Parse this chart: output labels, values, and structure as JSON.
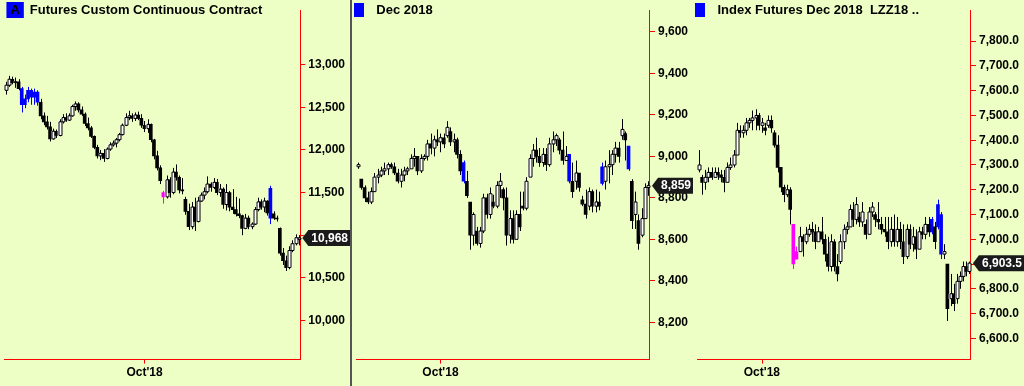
{
  "chart_data": [
    {
      "type": "candlestick",
      "title": "Futures Custom Continuous Contract",
      "annotations": [
        "A",
        "10,968"
      ],
      "categories": [
        null,
        null,
        null,
        null,
        null,
        null,
        null,
        null,
        null,
        null,
        null,
        null,
        null,
        null,
        null,
        null,
        null,
        null,
        null,
        null,
        null,
        null,
        null,
        null,
        null,
        null,
        null,
        null,
        null,
        null,
        null,
        null,
        null,
        null,
        null,
        null,
        null,
        null,
        null,
        null,
        null,
        null,
        null,
        null,
        "Oct'18",
        null,
        null,
        null,
        null,
        null,
        null,
        null,
        null,
        null,
        null,
        null,
        null,
        null,
        null,
        null,
        null,
        null,
        null,
        null,
        null,
        null,
        null,
        null,
        null,
        null,
        null,
        null,
        null,
        null,
        null,
        null,
        null,
        null,
        null,
        null,
        null,
        null,
        null,
        null,
        null,
        null,
        null,
        null,
        null,
        null,
        null,
        null,
        null,
        null
      ],
      "ohlc": [
        [
          12700,
          12800,
          12650,
          12760
        ],
        [
          12760,
          12870,
          12740,
          12830
        ],
        [
          12830,
          12860,
          12770,
          12790
        ],
        [
          12790,
          12850,
          12730,
          12800
        ],
        [
          12800,
          12830,
          12700,
          12720
        ],
        [
          12720,
          12740,
          12440,
          12530
        ],
        [
          12530,
          12650,
          12490,
          12600
        ],
        [
          12600,
          12740,
          12560,
          12700
        ],
        [
          12700,
          12720,
          12530,
          12620
        ],
        [
          12620,
          12720,
          12530,
          12680
        ],
        [
          12680,
          12700,
          12520,
          12560
        ],
        [
          12560,
          12600,
          12360,
          12400
        ],
        [
          12400,
          12440,
          12290,
          12330
        ],
        [
          12330,
          12400,
          12240,
          12270
        ],
        [
          12270,
          12330,
          12100,
          12130
        ],
        [
          12130,
          12250,
          12120,
          12220
        ],
        [
          12220,
          12240,
          12140,
          12170
        ],
        [
          12170,
          12360,
          12160,
          12330
        ],
        [
          12330,
          12420,
          12310,
          12380
        ],
        [
          12380,
          12430,
          12330,
          12350
        ],
        [
          12350,
          12430,
          12340,
          12400
        ],
        [
          12400,
          12530,
          12390,
          12510
        ],
        [
          12510,
          12570,
          12460,
          12540
        ],
        [
          12540,
          12560,
          12440,
          12470
        ],
        [
          12470,
          12510,
          12400,
          12420
        ],
        [
          12420,
          12440,
          12280,
          12310
        ],
        [
          12310,
          12380,
          12230,
          12260
        ],
        [
          12260,
          12280,
          12140,
          12160
        ],
        [
          12160,
          12170,
          12010,
          12030
        ],
        [
          12030,
          12060,
          11900,
          11930
        ],
        [
          11930,
          12000,
          11880,
          11960
        ],
        [
          11960,
          12010,
          11860,
          11900
        ],
        [
          11900,
          12030,
          11890,
          12010
        ],
        [
          12010,
          12090,
          11990,
          12060
        ],
        [
          12060,
          12110,
          12040,
          12080
        ],
        [
          12080,
          12140,
          12030,
          12120
        ],
        [
          12120,
          12200,
          12100,
          12180
        ],
        [
          12180,
          12310,
          12170,
          12290
        ],
        [
          12290,
          12430,
          12280,
          12380
        ],
        [
          12380,
          12460,
          12350,
          12400
        ],
        [
          12400,
          12430,
          12330,
          12370
        ],
        [
          12370,
          12440,
          12340,
          12410
        ],
        [
          12410,
          12450,
          12350,
          12370
        ],
        [
          12370,
          12420,
          12260,
          12290
        ],
        [
          12290,
          12340,
          12210,
          12250
        ],
        [
          12250,
          12360,
          12200,
          12300
        ],
        [
          12300,
          12310,
          12090,
          12120
        ],
        [
          12120,
          12130,
          11890,
          11930
        ],
        [
          11930,
          11990,
          11760,
          11790
        ],
        [
          11790,
          11820,
          11600,
          11640
        ],
        [
          11500,
          11520,
          11370,
          11450
        ],
        [
          11450,
          11700,
          11430,
          11650
        ],
        [
          11650,
          11680,
          11440,
          11500
        ],
        [
          11500,
          11790,
          11480,
          11740
        ],
        [
          11740,
          11830,
          11640,
          11680
        ],
        [
          11680,
          11700,
          11490,
          11530
        ],
        [
          11530,
          11670,
          11480,
          11520
        ],
        [
          11420,
          11450,
          11240,
          11280
        ],
        [
          11280,
          11370,
          11060,
          11100
        ],
        [
          11100,
          11390,
          11070,
          11330
        ],
        [
          11330,
          11440,
          11050,
          11160
        ],
        [
          11160,
          11450,
          11150,
          11400
        ],
        [
          11400,
          11500,
          11390,
          11470
        ],
        [
          11470,
          11560,
          11420,
          11510
        ],
        [
          11510,
          11690,
          11490,
          11600
        ],
        [
          11600,
          11620,
          11510,
          11560
        ],
        [
          11560,
          11670,
          11540,
          11620
        ],
        [
          11620,
          11660,
          11470,
          11500
        ],
        [
          11500,
          11600,
          11450,
          11540
        ],
        [
          11540,
          11560,
          11310,
          11360
        ],
        [
          11360,
          11600,
          11290,
          11500
        ],
        [
          11500,
          11520,
          11280,
          11330
        ],
        [
          11330,
          11540,
          11250,
          11300
        ],
        [
          11300,
          11450,
          11220,
          11250
        ],
        [
          11250,
          11430,
          11200,
          11230
        ],
        [
          11230,
          11240,
          11000,
          11080
        ],
        [
          11080,
          11250,
          11070,
          11200
        ],
        [
          11200,
          11230,
          11070,
          11100
        ],
        [
          11100,
          11150,
          11070,
          11130
        ],
        [
          11130,
          11330,
          11120,
          11300
        ],
        [
          11300,
          11440,
          11280,
          11390
        ],
        [
          11390,
          11420,
          11300,
          11330
        ],
        [
          11330,
          11440,
          11270,
          11400
        ],
        [
          11400,
          11410,
          11230,
          11260
        ],
        [
          11550,
          11580,
          11130,
          11200
        ],
        [
          11250,
          11280,
          11180,
          11200
        ],
        [
          11200,
          11230,
          11160,
          11190
        ],
        [
          11080,
          11090,
          10760,
          10790
        ],
        [
          10790,
          10850,
          10650,
          10700
        ],
        [
          10700,
          10760,
          10580,
          10620
        ],
        [
          10620,
          10870,
          10600,
          10820
        ],
        [
          10820,
          10940,
          10800,
          10900
        ],
        [
          10900,
          11010,
          10880,
          10970
        ],
        [
          10950,
          11000,
          10880,
          10968
        ]
      ],
      "colors": [
        null,
        null,
        null,
        null,
        null,
        "#0000ff",
        "#0000ff",
        "#0000ff",
        "#0000ff",
        "#0000ff",
        "#0000ff",
        null,
        null,
        null,
        null,
        null,
        null,
        null,
        null,
        null,
        null,
        null,
        null,
        null,
        null,
        null,
        null,
        null,
        null,
        null,
        null,
        null,
        null,
        null,
        null,
        null,
        null,
        null,
        null,
        null,
        null,
        null,
        null,
        null,
        null,
        null,
        null,
        null,
        null,
        null,
        "#ff00ff",
        null,
        null,
        null,
        null,
        null,
        null,
        null,
        null,
        null,
        null,
        null,
        null,
        null,
        null,
        null,
        null,
        null,
        null,
        null,
        null,
        null,
        null,
        null,
        null,
        null,
        null,
        null,
        null,
        null,
        null,
        null,
        null,
        null,
        "#0000ff",
        null,
        null,
        null,
        null,
        null,
        null,
        null,
        null,
        null
      ],
      "ylim": [
        9540,
        13640
      ],
      "yticks": [
        {
          "value": 10000,
          "label": "10,000"
        },
        {
          "value": 10500,
          "label": "10,500"
        },
        {
          "value": 11000,
          "label": null
        },
        {
          "value": 11500,
          "label": "11,500"
        },
        {
          "value": 12000,
          "label": "12,000"
        },
        {
          "value": 12500,
          "label": "12,500"
        },
        {
          "value": 13000,
          "label": "13,000"
        }
      ]
    },
    {
      "type": "candlestick",
      "title": "Dec 2018",
      "annotations": [
        "8,859"
      ],
      "categories": [
        null,
        null,
        null,
        null,
        null,
        null,
        null,
        null,
        null,
        null,
        null,
        null,
        null,
        null,
        null,
        null,
        null,
        null,
        null,
        null,
        null,
        null,
        null,
        null,
        null,
        "Oct'18",
        null,
        null,
        null,
        null,
        null,
        null,
        null,
        null,
        null,
        null,
        null,
        null,
        null,
        null,
        null,
        null,
        null,
        null,
        null,
        null,
        null,
        null,
        null,
        null,
        null,
        null,
        null,
        null,
        null,
        null,
        null,
        null,
        null,
        null,
        null,
        null,
        null,
        null,
        null,
        null,
        null,
        null,
        null,
        null,
        null,
        null,
        null,
        null,
        null,
        null,
        null,
        null,
        null,
        null,
        null,
        null,
        null,
        null,
        null,
        null,
        null,
        null,
        null
      ],
      "ohlc": [
        [
          8950,
          8970,
          8940,
          8960
        ],
        [
          8890,
          8890,
          8840,
          8850
        ],
        [
          8850,
          8860,
          8780,
          8800
        ],
        [
          8800,
          8830,
          8770,
          8780
        ],
        [
          8780,
          8850,
          8770,
          8830
        ],
        [
          8830,
          8920,
          8830,
          8900
        ],
        [
          8900,
          8940,
          8870,
          8910
        ],
        [
          8910,
          8950,
          8900,
          8930
        ],
        [
          8930,
          8970,
          8910,
          8940
        ],
        [
          8940,
          8970,
          8910,
          8960
        ],
        [
          8960,
          8970,
          8940,
          8950
        ],
        [
          8950,
          8970,
          8910,
          8920
        ],
        [
          8920,
          8940,
          8870,
          8880
        ],
        [
          8880,
          8940,
          8850,
          8910
        ],
        [
          8910,
          8950,
          8880,
          8930
        ],
        [
          8930,
          8950,
          8910,
          8940
        ],
        [
          8940,
          9010,
          8940,
          8990
        ],
        [
          8990,
          9040,
          8950,
          9000
        ],
        [
          9000,
          9000,
          8910,
          8930
        ],
        [
          8930,
          9010,
          8920,
          8990
        ],
        [
          8990,
          9010,
          8980,
          9000
        ],
        [
          9000,
          9080,
          8980,
          9060
        ],
        [
          9060,
          9110,
          9010,
          9040
        ],
        [
          9040,
          9100,
          9000,
          9080
        ],
        [
          9080,
          9130,
          9050,
          9070
        ],
        [
          9070,
          9110,
          9020,
          9090
        ],
        [
          9090,
          9110,
          9040,
          9060
        ],
        [
          9100,
          9170,
          9090,
          9140
        ],
        [
          9120,
          9140,
          9050,
          9070
        ],
        [
          9070,
          9110,
          9020,
          9080
        ],
        [
          9080,
          9090,
          8990,
          9010
        ],
        [
          9010,
          9030,
          8910,
          8930
        ],
        [
          8970,
          8980,
          8870,
          8880
        ],
        [
          8880,
          8930,
          8800,
          8810
        ],
        [
          8780,
          8780,
          8550,
          8620
        ],
        [
          8620,
          8730,
          8570,
          8720
        ],
        [
          8640,
          8660,
          8570,
          8580
        ],
        [
          8580,
          8660,
          8560,
          8640
        ],
        [
          8640,
          8820,
          8630,
          8800
        ],
        [
          8800,
          8820,
          8700,
          8720
        ],
        [
          8720,
          8850,
          8700,
          8820
        ],
        [
          8780,
          8815,
          8750,
          8760
        ],
        [
          8760,
          8880,
          8750,
          8860
        ],
        [
          8860,
          8920,
          8800,
          8880
        ],
        [
          8840,
          8850,
          8740,
          8800
        ],
        [
          8800,
          8850,
          8570,
          8620
        ],
        [
          8620,
          8740,
          8580,
          8700
        ],
        [
          8700,
          8740,
          8580,
          8600
        ],
        [
          8600,
          8740,
          8600,
          8720
        ],
        [
          8720,
          8830,
          8640,
          8660
        ],
        [
          8760,
          8830,
          8740,
          8750
        ],
        [
          8750,
          8900,
          8740,
          8880
        ],
        [
          8900,
          9010,
          8900,
          8990
        ],
        [
          8990,
          9060,
          8950,
          9030
        ],
        [
          9030,
          9090,
          8970,
          9000
        ],
        [
          9000,
          9040,
          8950,
          8970
        ],
        [
          8970,
          9040,
          8950,
          9010
        ],
        [
          9010,
          9040,
          8930,
          8960
        ],
        [
          8960,
          9090,
          8950,
          9060
        ],
        [
          9060,
          9120,
          9020,
          9080
        ],
        [
          9080,
          9110,
          9050,
          9100
        ],
        [
          9080,
          9090,
          9010,
          9030
        ],
        [
          9030,
          9120,
          8960,
          8980
        ],
        [
          8980,
          9050,
          8980,
          9000
        ],
        [
          9010,
          9010,
          8870,
          8880
        ],
        [
          8880,
          8970,
          8800,
          8830
        ],
        [
          8880,
          8980,
          8840,
          8920
        ],
        [
          8920,
          8920,
          8830,
          8850
        ],
        [
          8790,
          8810,
          8760,
          8770
        ],
        [
          8770,
          8840,
          8700,
          8720
        ],
        [
          8760,
          8850,
          8740,
          8830
        ],
        [
          8830,
          8840,
          8730,
          8760
        ],
        [
          8760,
          8840,
          8730,
          8780
        ],
        [
          8780,
          8830,
          8740,
          8760
        ],
        [
          8870,
          8970,
          8860,
          8950
        ],
        [
          8880,
          8980,
          8840,
          8950
        ],
        [
          8950,
          9030,
          8870,
          8960
        ],
        [
          8960,
          9030,
          8910,
          9010
        ],
        [
          9010,
          9070,
          8970,
          9040
        ],
        [
          9040,
          9070,
          8970,
          9000
        ],
        [
          9100,
          9180,
          9080,
          9130
        ],
        [
          9110,
          9120,
          8980,
          9080
        ],
        [
          9050,
          9050,
          8930,
          8940
        ],
        [
          8880,
          8890,
          8650,
          8690
        ],
        [
          8720,
          8830,
          8650,
          8780
        ],
        [
          8690,
          8720,
          8550,
          8580
        ],
        [
          8620,
          8750,
          8610,
          8700
        ],
        [
          8700,
          8870,
          8700,
          8850
        ],
        [
          8850,
          8880,
          8810,
          8859
        ]
      ],
      "colors": [
        null,
        null,
        null,
        null,
        null,
        null,
        null,
        null,
        null,
        null,
        null,
        null,
        null,
        null,
        null,
        null,
        null,
        null,
        null,
        null,
        null,
        null,
        null,
        null,
        null,
        null,
        null,
        null,
        null,
        null,
        null,
        null,
        "#0000ff",
        null,
        null,
        null,
        null,
        null,
        null,
        null,
        null,
        null,
        null,
        null,
        null,
        null,
        null,
        null,
        null,
        null,
        null,
        null,
        null,
        null,
        null,
        null,
        null,
        null,
        null,
        null,
        null,
        null,
        null,
        null,
        "#0000ff",
        null,
        null,
        null,
        null,
        null,
        null,
        null,
        null,
        null,
        "#0000ff",
        null,
        null,
        null,
        null,
        null,
        null,
        null,
        "#0000ff",
        null,
        null,
        null,
        null,
        null,
        null
      ],
      "ylim": [
        8020,
        9705
      ],
      "yticks": [
        {
          "value": 8200,
          "label": "8,200"
        },
        {
          "value": 8400,
          "label": "8,400"
        },
        {
          "value": 8600,
          "label": "8,600"
        },
        {
          "value": 8800,
          "label": "8,800"
        },
        {
          "value": 9000,
          "label": "9,000"
        },
        {
          "value": 9200,
          "label": "9,200"
        },
        {
          "value": 9400,
          "label": "9,400"
        },
        {
          "value": 9600,
          "label": "9,600"
        }
      ]
    },
    {
      "type": "candlestick",
      "title": "Index Futures Dec 2018  LZZ18 ..",
      "annotations": [
        "6,903.5"
      ],
      "categories": [
        null,
        null,
        null,
        null,
        null,
        null,
        null,
        null,
        null,
        null,
        null,
        null,
        null,
        null,
        null,
        null,
        null,
        null,
        null,
        null,
        "Oct'18",
        null,
        null,
        null,
        null,
        null,
        null,
        null,
        null,
        null,
        null,
        null,
        null,
        null,
        null,
        null,
        null,
        null,
        null,
        null,
        null,
        null,
        null,
        null,
        null,
        null,
        null,
        null,
        null,
        null,
        null,
        null,
        null,
        null,
        null,
        null,
        null,
        null,
        null,
        null,
        null,
        null,
        null,
        null,
        null,
        null,
        null,
        null,
        null,
        null,
        null,
        null,
        null,
        null,
        null,
        null,
        null,
        null,
        null,
        null,
        null,
        null,
        null,
        null,
        null,
        null,
        null
      ],
      "ohlc": [
        [
          7280,
          7360,
          7270,
          7300
        ],
        [
          7250,
          7260,
          7180,
          7230
        ],
        [
          7230,
          7280,
          7200,
          7250
        ],
        [
          7250,
          7290,
          7230,
          7270
        ],
        [
          7270,
          7290,
          7240,
          7250
        ],
        [
          7250,
          7290,
          7250,
          7270
        ],
        [
          7270,
          7290,
          7240,
          7260
        ],
        [
          7260,
          7280,
          7230,
          7250
        ],
        [
          7250,
          7280,
          7190,
          7230
        ],
        [
          7230,
          7310,
          7230,
          7290
        ],
        [
          7290,
          7330,
          7280,
          7300
        ],
        [
          7300,
          7360,
          7290,
          7340
        ],
        [
          7340,
          7470,
          7340,
          7440
        ],
        [
          7440,
          7460,
          7410,
          7430
        ],
        [
          7430,
          7460,
          7410,
          7440
        ],
        [
          7440,
          7490,
          7420,
          7470
        ],
        [
          7470,
          7490,
          7450,
          7480
        ],
        [
          7480,
          7520,
          7440,
          7490
        ],
        [
          7490,
          7525,
          7440,
          7500
        ],
        [
          7500,
          7510,
          7440,
          7460
        ],
        [
          7460,
          7490,
          7430,
          7470
        ],
        [
          7450,
          7470,
          7420,
          7440
        ],
        [
          7460,
          7500,
          7450,
          7480
        ],
        [
          7480,
          7500,
          7430,
          7450
        ],
        [
          7430,
          7440,
          7370,
          7380
        ],
        [
          7380,
          7420,
          7270,
          7290
        ],
        [
          7290,
          7290,
          7190,
          7210
        ],
        [
          7210,
          7220,
          7150,
          7180
        ],
        [
          7180,
          7220,
          7170,
          7200
        ],
        [
          7200,
          7210,
          7060,
          7120
        ],
        [
          7060,
          7060,
          6880,
          6900
        ],
        [
          6920,
          6970,
          6920,
          6950
        ],
        [
          6950,
          7050,
          6950,
          7010
        ],
        [
          7010,
          7020,
          6930,
          6990
        ],
        [
          6990,
          7050,
          6980,
          7020
        ],
        [
          7020,
          7060,
          7010,
          7040
        ],
        [
          7040,
          7070,
          6990,
          7030
        ],
        [
          7030,
          7060,
          6960,
          6990
        ],
        [
          6990,
          7050,
          6990,
          7030
        ],
        [
          7030,
          7090,
          6980,
          7000
        ],
        [
          7000,
          7020,
          6910,
          6940
        ],
        [
          6940,
          7010,
          6870,
          6890
        ],
        [
          6890,
          7020,
          6870,
          6990
        ],
        [
          6990,
          7000,
          6870,
          6890
        ],
        [
          6890,
          6940,
          6830,
          6860
        ],
        [
          6910,
          7020,
          6900,
          6990
        ],
        [
          6990,
          7060,
          6960,
          7040
        ],
        [
          7040,
          7070,
          7020,
          7050
        ],
        [
          7050,
          7140,
          7050,
          7120
        ],
        [
          7120,
          7150,
          7050,
          7080
        ],
        [
          7080,
          7170,
          7060,
          7140
        ],
        [
          7090,
          7110,
          7050,
          7070
        ],
        [
          7070,
          7150,
          7050,
          7110
        ],
        [
          7060,
          7080,
          7000,
          7020
        ],
        [
          7020,
          7130,
          7020,
          7110
        ],
        [
          7110,
          7150,
          7090,
          7130
        ],
        [
          7100,
          7110,
          7050,
          7080
        ],
        [
          7080,
          7150,
          7040,
          7070
        ],
        [
          7060,
          7090,
          7020,
          7040
        ],
        [
          7040,
          7090,
          7010,
          7030
        ],
        [
          7030,
          7090,
          6960,
          6990
        ],
        [
          6990,
          7090,
          6970,
          7040
        ],
        [
          7040,
          7100,
          6970,
          6990
        ],
        [
          6990,
          7090,
          6970,
          7040
        ],
        [
          7040,
          7070,
          6960,
          6990
        ],
        [
          6990,
          7060,
          6900,
          6930
        ],
        [
          6930,
          7060,
          6920,
          7040
        ],
        [
          7040,
          7060,
          6960,
          6980
        ],
        [
          6980,
          7050,
          6950,
          7010
        ],
        [
          7010,
          7040,
          6920,
          6960
        ],
        [
          6960,
          7050,
          6960,
          7030
        ],
        [
          7030,
          7050,
          7000,
          7020
        ],
        [
          7020,
          7090,
          7000,
          7060
        ],
        [
          7060,
          7090,
          7010,
          7030
        ],
        [
          7030,
          7090,
          7020,
          7080
        ],
        [
          7050,
          7070,
          6960,
          6990
        ],
        [
          7050,
          7160,
          7040,
          7140
        ],
        [
          7100,
          7110,
          6920,
          6940
        ],
        [
          6940,
          6980,
          6920,
          6950
        ],
        [
          6900,
          6900,
          6670,
          6720
        ],
        [
          6760,
          6860,
          6730,
          6780
        ],
        [
          6780,
          6820,
          6710,
          6740
        ],
        [
          6760,
          6860,
          6740,
          6830
        ],
        [
          6830,
          6870,
          6800,
          6850
        ],
        [
          6850,
          6910,
          6830,
          6890
        ],
        [
          6890,
          6910,
          6850,
          6870
        ],
        [
          6870,
          6910,
          6860,
          6903.5
        ]
      ],
      "colors": [
        null,
        null,
        null,
        null,
        null,
        null,
        null,
        null,
        null,
        null,
        null,
        null,
        null,
        null,
        null,
        null,
        null,
        null,
        null,
        null,
        null,
        null,
        null,
        null,
        null,
        null,
        null,
        null,
        null,
        null,
        "#ff00ff",
        "#ff00ff",
        null,
        null,
        null,
        null,
        null,
        null,
        null,
        null,
        null,
        null,
        null,
        null,
        null,
        null,
        null,
        null,
        null,
        null,
        null,
        null,
        null,
        null,
        null,
        null,
        null,
        null,
        null,
        null,
        null,
        null,
        null,
        null,
        null,
        null,
        null,
        null,
        null,
        null,
        null,
        null,
        null,
        null,
        "#0000ff",
        null,
        "#0000ff",
        "#0000ff",
        null,
        null,
        null,
        null,
        null,
        null,
        null,
        null,
        null
      ],
      "ylim": [
        6514,
        7925
      ],
      "yticks": [
        {
          "value": 6600,
          "label": "6,600.0"
        },
        {
          "value": 6700,
          "label": "6,700.0"
        },
        {
          "value": 6800,
          "label": "6,800.0"
        },
        {
          "value": 6900,
          "label": null
        },
        {
          "value": 7000,
          "label": "7,000.0"
        },
        {
          "value": 7100,
          "label": "7,100.0"
        },
        {
          "value": 7200,
          "label": "7,200.0"
        },
        {
          "value": 7300,
          "label": "7,300.0"
        },
        {
          "value": 7400,
          "label": "7,400.0"
        },
        {
          "value": 7500,
          "label": "7,500.0"
        },
        {
          "value": 7600,
          "label": "7,600.0"
        },
        {
          "value": 7700,
          "label": "7,700.0"
        },
        {
          "value": 7800,
          "label": "7,800.0"
        }
      ]
    }
  ]
}
